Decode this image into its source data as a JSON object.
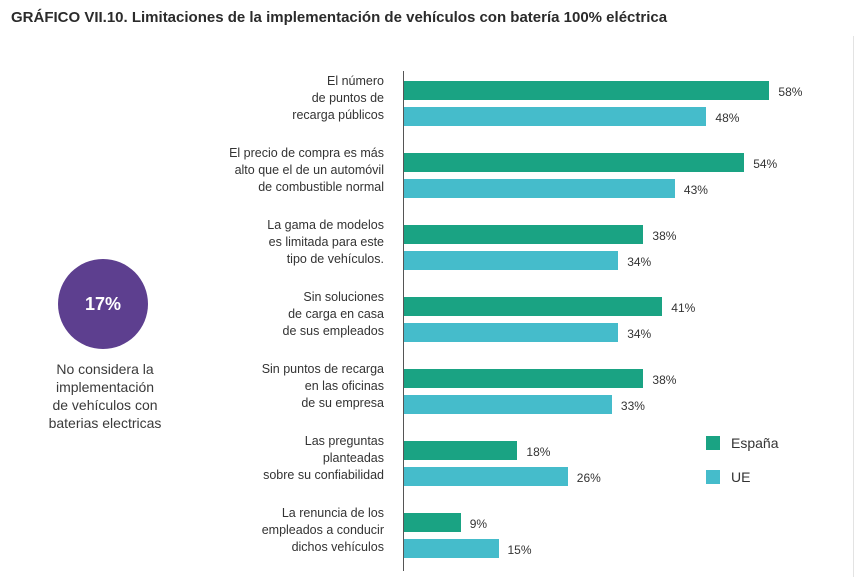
{
  "chart_data": {
    "type": "bar",
    "orientation": "horizontal",
    "title": "GRÁFICO VII.10. Limitaciones de la implementación de vehículos con batería 100% eléctrica",
    "categories": [
      [
        "El número",
        "de  puntos de",
        "recarga públicos"
      ],
      [
        "El precio de compra es más",
        "alto que el de un automóvil",
        "de combustible normal"
      ],
      [
        "La gama de modelos",
        "es limitada para este",
        "tipo de vehículos."
      ],
      [
        "Sin soluciones",
        "de carga en casa",
        "de sus empleados"
      ],
      [
        "Sin puntos de recarga",
        "en las oficinas",
        "de su empresa"
      ],
      [
        "Las preguntas",
        "planteadas",
        "sobre su confiabilidad"
      ],
      [
        "La renuncia de los",
        "empleados a conducir",
        "dichos vehículos"
      ]
    ],
    "series": [
      {
        "name": "España",
        "color": "#1aa383",
        "values": [
          58,
          54,
          38,
          41,
          38,
          18,
          9
        ]
      },
      {
        "name": "UE",
        "color": "#45bccb",
        "values": [
          48,
          43,
          34,
          34,
          33,
          26,
          15
        ]
      }
    ],
    "value_suffix": "%",
    "xlim": [
      0,
      60
    ],
    "grid": false,
    "legend_position": "right"
  },
  "callout": {
    "value": "17%",
    "caption_lines": [
      "No considera la",
      "implementación",
      "de vehículos con",
      "baterias electricas"
    ],
    "color": "#5d3f8f"
  }
}
